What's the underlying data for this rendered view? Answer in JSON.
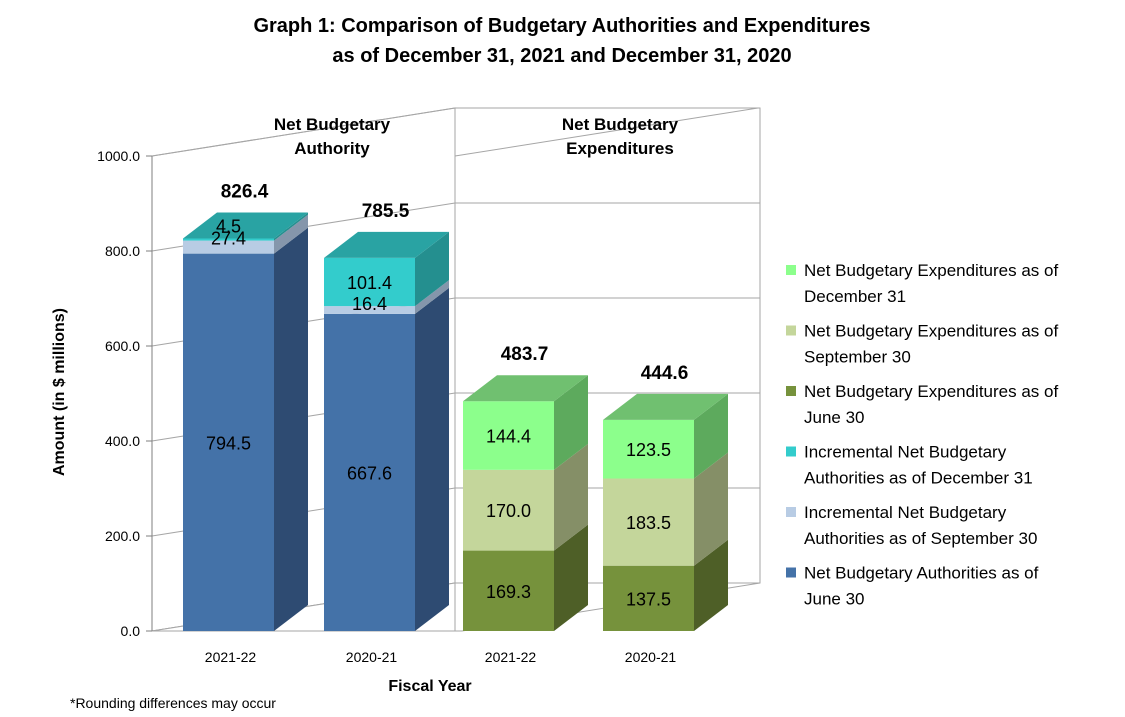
{
  "chart_data": {
    "type": "bar",
    "stacked": true,
    "title_line1": "Graph 1: Comparison of Budgetary Authorities and Expenditures",
    "title_line2": "as of December 31, 2021 and December 31, 2020",
    "xlabel": "Fiscal Year",
    "ylabel": "Amount (in $ millions)",
    "ylim": [
      0,
      1000
    ],
    "yticks": [
      "0.0",
      "200.0",
      "400.0",
      "600.0",
      "800.0",
      "1000.0"
    ],
    "grid": true,
    "legend_position": "right",
    "groups": [
      {
        "label_line1": "Net Budgetary",
        "label_line2": "Authority",
        "bars": [
          {
            "category": "2021-22",
            "total": "826.4",
            "segments": [
              {
                "series": "Net Budgetary Authorities as of June 30",
                "value": 794.5,
                "label": "794.5"
              },
              {
                "series": "Incremental Net Budgetary Authorities as of September 30",
                "value": 27.4,
                "label": "27.4"
              },
              {
                "series": "Incremental Net Budgetary Authorities as of December 31",
                "value": 4.5,
                "label": "4.5"
              }
            ]
          },
          {
            "category": "2020-21",
            "total": "785.5",
            "segments": [
              {
                "series": "Net Budgetary Authorities as of June 30",
                "value": 667.6,
                "label": "667.6"
              },
              {
                "series": "Incremental Net Budgetary Authorities as of September 30",
                "value": 16.4,
                "label": "16.4"
              },
              {
                "series": "Incremental Net Budgetary Authorities as of December 31",
                "value": 101.4,
                "label": "101.4"
              }
            ]
          }
        ]
      },
      {
        "label_line1": "Net Budgetary",
        "label_line2": "Expenditures",
        "bars": [
          {
            "category": "2021-22",
            "total": "483.7",
            "segments": [
              {
                "series": "Net Budgetary Expenditures as of June 30",
                "value": 169.3,
                "label": "169.3"
              },
              {
                "series": "Net Budgetary Expenditures as of September 30",
                "value": 170.0,
                "label": "170.0"
              },
              {
                "series": "Net Budgetary Expenditures as of December 31",
                "value": 144.4,
                "label": "144.4"
              }
            ]
          },
          {
            "category": "2020-21",
            "total": "444.6",
            "segments": [
              {
                "series": "Net Budgetary Expenditures as of June 30",
                "value": 137.5,
                "label": "137.5"
              },
              {
                "series": "Net Budgetary Expenditures as of September 30",
                "value": 183.5,
                "label": "183.5"
              },
              {
                "series": "Net Budgetary Expenditures as of December 31",
                "value": 123.5,
                "label": "123.5"
              }
            ]
          }
        ]
      }
    ],
    "legend": [
      {
        "line1": "Net Budgetary Expenditures as of",
        "line2": "December 31",
        "color": "#8CFF8C"
      },
      {
        "line1": "Net Budgetary Expenditures as of",
        "line2": "September 30",
        "color": "#C4D69B"
      },
      {
        "line1": "Net Budgetary Expenditures as of",
        "line2": "June 30",
        "color": "#76923C"
      },
      {
        "line1": "Incremental Net Budgetary",
        "line2": "Authorities as of December 31",
        "color": "#33CCCC"
      },
      {
        "line1": "Incremental Net Budgetary",
        "line2": "Authorities as of September 30",
        "color": "#B8CCE4"
      },
      {
        "line1": "Net Budgetary Authorities as of",
        "line2": "June 30",
        "color": "#4472A8"
      }
    ],
    "footnote": "*Rounding differences may occur"
  }
}
